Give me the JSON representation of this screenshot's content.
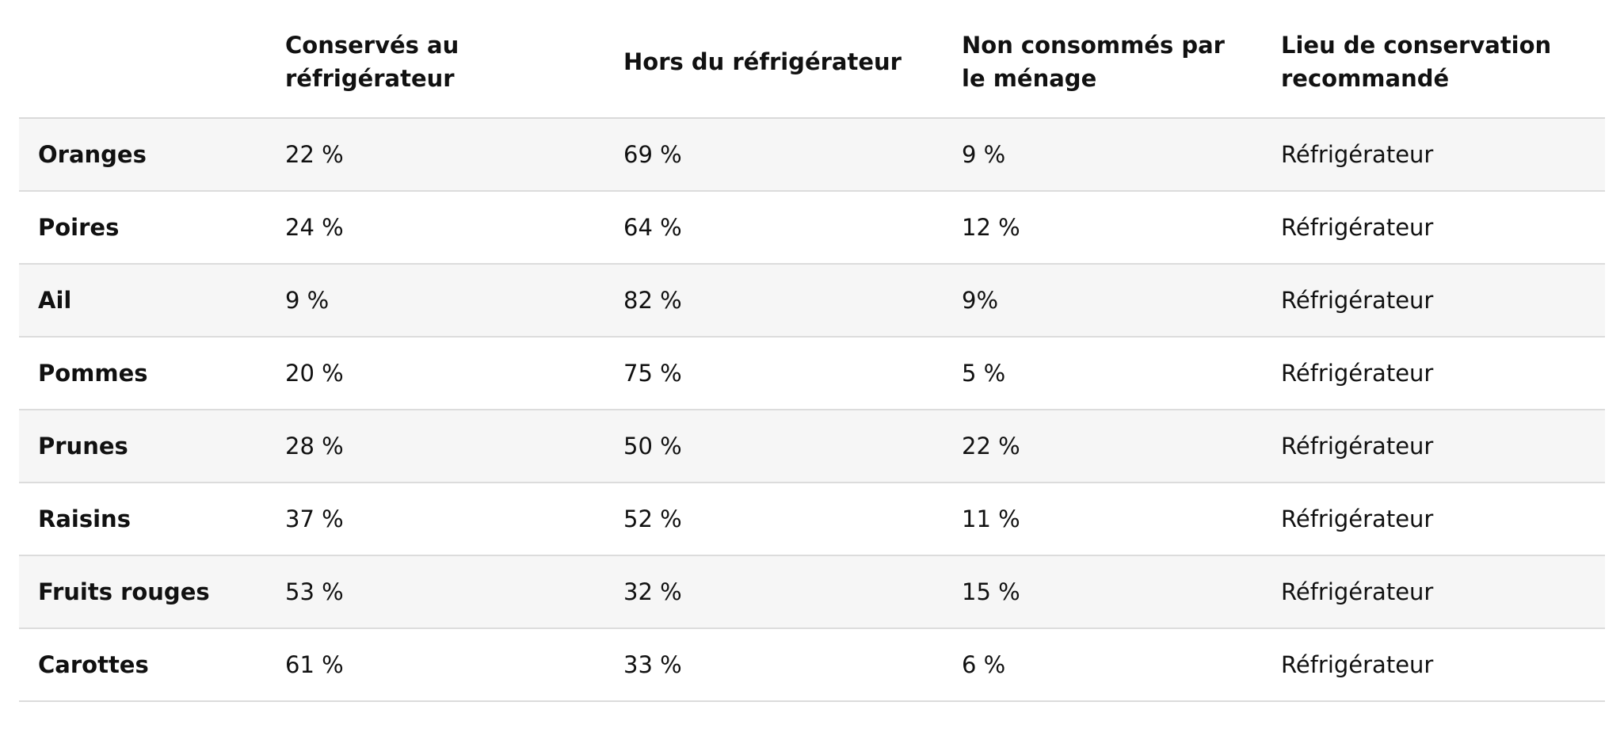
{
  "table": {
    "headers": [
      "",
      "Conservés au réfrigérateur",
      "Hors du réfrigérateur",
      "Non consommés par le ménage",
      "Lieu de conservation recommandé"
    ],
    "rows": [
      [
        "Oranges",
        "22 %",
        "69 %",
        "9 %",
        "Réfrigérateur"
      ],
      [
        "Poires",
        "24 %",
        "64 %",
        "12 %",
        "Réfrigérateur"
      ],
      [
        "Ail",
        "9 %",
        "82 %",
        "9%",
        "Réfrigérateur"
      ],
      [
        "Pommes",
        "20 %",
        "75 %",
        "5 %",
        "Réfrigérateur"
      ],
      [
        "Prunes",
        "28 %",
        "50 %",
        "22 %",
        "Réfrigérateur"
      ],
      [
        "Raisins",
        "37 %",
        "52 %",
        "11 %",
        "Réfrigérateur"
      ],
      [
        "Fruits rouges",
        "53 %",
        "32 %",
        "15 %",
        "Réfrigérateur"
      ],
      [
        "Carottes",
        "61 %",
        "33 %",
        "6 %",
        "Réfrigérateur"
      ]
    ]
  }
}
